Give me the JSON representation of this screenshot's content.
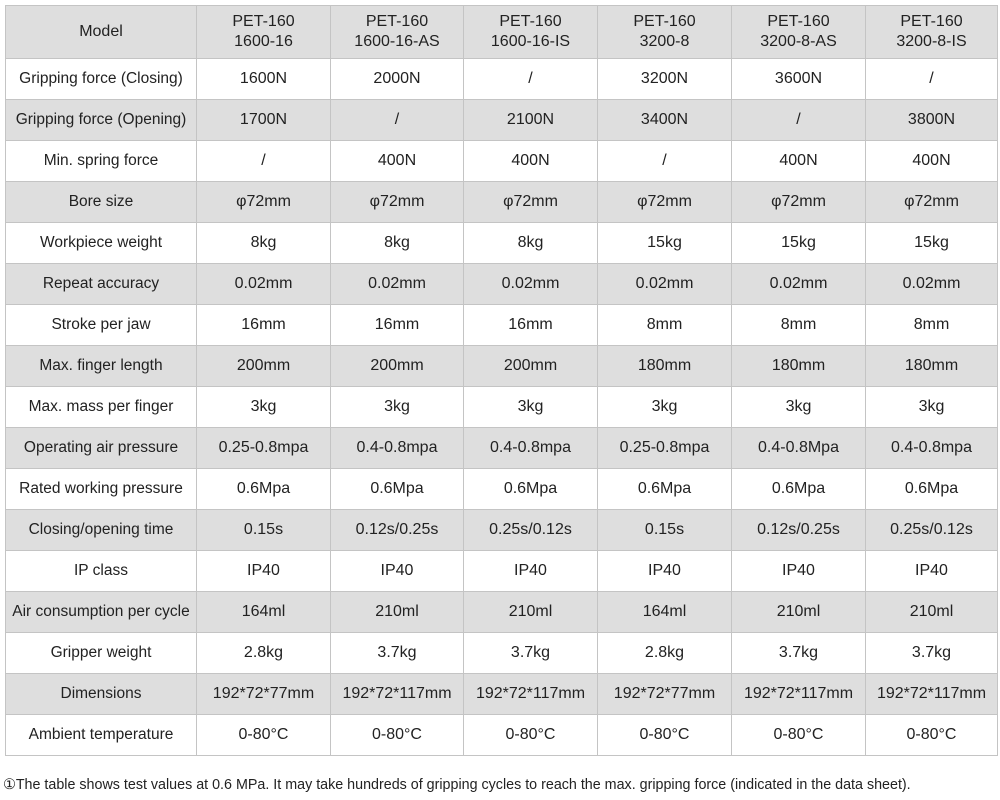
{
  "table": {
    "header": [
      [
        "Model"
      ],
      [
        "PET-160",
        "1600-16"
      ],
      [
        "PET-160",
        "1600-16-AS"
      ],
      [
        "PET-160",
        "1600-16-IS"
      ],
      [
        "PET-160",
        "3200-8"
      ],
      [
        "PET-160",
        "3200-8-AS"
      ],
      [
        "PET-160",
        "3200-8-IS"
      ]
    ],
    "rows": [
      [
        "Gripping force (Closing)",
        "1600N",
        "2000N",
        "/",
        "3200N",
        "3600N",
        "/"
      ],
      [
        "Gripping force (Opening)",
        "1700N",
        "/",
        "2100N",
        "3400N",
        "/",
        "3800N"
      ],
      [
        "Min. spring force",
        "/",
        "400N",
        "400N",
        "/",
        "400N",
        "400N"
      ],
      [
        "Bore size",
        "φ72mm",
        "φ72mm",
        "φ72mm",
        "φ72mm",
        "φ72mm",
        "φ72mm"
      ],
      [
        "Workpiece weight",
        "8kg",
        "8kg",
        "8kg",
        "15kg",
        "15kg",
        "15kg"
      ],
      [
        "Repeat accuracy",
        "0.02mm",
        "0.02mm",
        "0.02mm",
        "0.02mm",
        "0.02mm",
        "0.02mm"
      ],
      [
        "Stroke per jaw",
        "16mm",
        "16mm",
        "16mm",
        "8mm",
        "8mm",
        "8mm"
      ],
      [
        "Max. finger length",
        "200mm",
        "200mm",
        "200mm",
        "180mm",
        "180mm",
        "180mm"
      ],
      [
        "Max. mass per finger",
        "3kg",
        "3kg",
        "3kg",
        "3kg",
        "3kg",
        "3kg"
      ],
      [
        "Operating air pressure",
        "0.25-0.8mpa",
        "0.4-0.8mpa",
        "0.4-0.8mpa",
        "0.25-0.8mpa",
        "0.4-0.8Mpa",
        "0.4-0.8mpa"
      ],
      [
        "Rated working pressure",
        "0.6Mpa",
        "0.6Mpa",
        "0.6Mpa",
        "0.6Mpa",
        "0.6Mpa",
        "0.6Mpa"
      ],
      [
        "Closing/opening time",
        "0.15s",
        "0.12s/0.25s",
        "0.25s/0.12s",
        "0.15s",
        "0.12s/0.25s",
        "0.25s/0.12s"
      ],
      [
        "IP class",
        "IP40",
        "IP40",
        "IP40",
        "IP40",
        "IP40",
        "IP40"
      ],
      [
        "Air consumption per cycle",
        "164ml",
        "210ml",
        "210ml",
        "164ml",
        "210ml",
        "210ml"
      ],
      [
        "Gripper weight",
        "2.8kg",
        "3.7kg",
        "3.7kg",
        "2.8kg",
        "3.7kg",
        "3.7kg"
      ],
      [
        "Dimensions",
        "192*72*77mm",
        "192*72*117mm",
        "192*72*117mm",
        "192*72*77mm",
        "192*72*117mm",
        "192*72*117mm"
      ],
      [
        "Ambient temperature",
        "0-80°C",
        "0-80°C",
        "0-80°C",
        "0-80°C",
        "0-80°C",
        "0-80°C"
      ]
    ]
  },
  "footnote": "①The table shows test values at 0.6 MPa. It may take hundreds of gripping cycles to reach the max. gripping force (indicated in the data sheet)."
}
